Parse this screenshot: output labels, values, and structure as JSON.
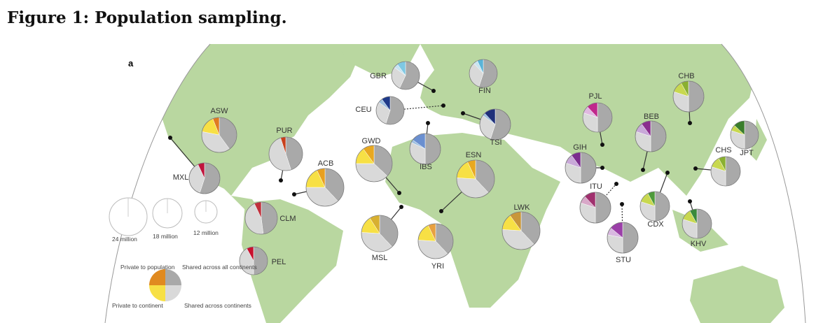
{
  "figure_title": "Figure 1: Population sampling.",
  "panel_label": "a",
  "colors": {
    "land": "#b9d7a0",
    "shared_all": "#a9a9a9",
    "shared_continents": "#d9d9d9",
    "private_continent": "#f7e045",
    "private_population": "#e08a20"
  },
  "legend": {
    "sizes": [
      {
        "label": "24 million"
      },
      {
        "label": "18 million"
      },
      {
        "label": "12 million"
      }
    ],
    "private_population": "Private to population",
    "private_continent": "Private to continent",
    "shared_all": "Shared across all continents",
    "shared_continents": "Shared across continents"
  },
  "populations": [
    {
      "code": "ASW",
      "shares": [
        0.4,
        0.38,
        0.16,
        0.06
      ],
      "colors": [
        "#a9a9a9",
        "#d9d9d9",
        "#f7e045",
        "#e07b20"
      ]
    },
    {
      "code": "MXL",
      "shares": [
        0.55,
        0.38,
        0.0,
        0.07
      ],
      "colors": [
        "#a9a9a9",
        "#d9d9d9",
        "#f7e045",
        "#c0143c"
      ]
    },
    {
      "code": "PUR",
      "shares": [
        0.45,
        0.5,
        0.0,
        0.05
      ],
      "colors": [
        "#a9a9a9",
        "#d9d9d9",
        "#f7e045",
        "#c8401c"
      ]
    },
    {
      "code": "ACB",
      "shares": [
        0.38,
        0.37,
        0.18,
        0.07
      ],
      "colors": [
        "#a9a9a9",
        "#d9d9d9",
        "#f7e045",
        "#e8a020"
      ]
    },
    {
      "code": "CLM",
      "shares": [
        0.48,
        0.45,
        0.0,
        0.07
      ],
      "colors": [
        "#a9a9a9",
        "#d9d9d9",
        "#f7e045",
        "#c0303c"
      ]
    },
    {
      "code": "PEL",
      "shares": [
        0.5,
        0.42,
        0.0,
        0.08
      ],
      "colors": [
        "#a9a9a9",
        "#d9d9d9",
        "#f7e045",
        "#c8102e"
      ]
    },
    {
      "code": "GBR",
      "shares": [
        0.57,
        0.28,
        0.05,
        0.1
      ],
      "colors": [
        "#a9a9a9",
        "#d9d9d9",
        "#c8e4f0",
        "#7ec8e3"
      ]
    },
    {
      "code": "FIN",
      "shares": [
        0.55,
        0.33,
        0.05,
        0.07
      ],
      "colors": [
        "#a9a9a9",
        "#d9d9d9",
        "#c8e4f0",
        "#5ab4d8"
      ]
    },
    {
      "code": "CEU",
      "shares": [
        0.55,
        0.3,
        0.05,
        0.1
      ],
      "colors": [
        "#a9a9a9",
        "#d9d9d9",
        "#9fc0e0",
        "#1f3a8a"
      ]
    },
    {
      "code": "TSI",
      "shares": [
        0.55,
        0.3,
        0.03,
        0.12
      ],
      "colors": [
        "#a9a9a9",
        "#d9d9d9",
        "#9fc0e0",
        "#1f2f7a"
      ]
    },
    {
      "code": "IBS",
      "shares": [
        0.5,
        0.32,
        0.03,
        0.15
      ],
      "colors": [
        "#a9a9a9",
        "#d9d9d9",
        "#9fc0e0",
        "#6a8fd0"
      ]
    },
    {
      "code": "GWD",
      "shares": [
        0.37,
        0.38,
        0.15,
        0.1
      ],
      "colors": [
        "#a9a9a9",
        "#d9d9d9",
        "#f7e045",
        "#e8a820"
      ]
    },
    {
      "code": "ESN",
      "shares": [
        0.38,
        0.38,
        0.17,
        0.07
      ],
      "colors": [
        "#a9a9a9",
        "#d9d9d9",
        "#f7e045",
        "#e8a820"
      ]
    },
    {
      "code": "MSL",
      "shares": [
        0.38,
        0.38,
        0.15,
        0.09
      ],
      "colors": [
        "#a9a9a9",
        "#d9d9d9",
        "#f7e045",
        "#d8b030"
      ]
    },
    {
      "code": "YRI",
      "shares": [
        0.38,
        0.38,
        0.17,
        0.07
      ],
      "colors": [
        "#a9a9a9",
        "#d9d9d9",
        "#f7e045",
        "#e8a040"
      ]
    },
    {
      "code": "LWK",
      "shares": [
        0.38,
        0.38,
        0.14,
        0.1
      ],
      "colors": [
        "#a9a9a9",
        "#d9d9d9",
        "#f7e045",
        "#c8963a"
      ]
    },
    {
      "code": "PJL",
      "shares": [
        0.5,
        0.3,
        0.08,
        0.12
      ],
      "colors": [
        "#a9a9a9",
        "#d9d9d9",
        "#e0b8e0",
        "#c0288c"
      ]
    },
    {
      "code": "GIH",
      "shares": [
        0.5,
        0.3,
        0.1,
        0.1
      ],
      "colors": [
        "#a9a9a9",
        "#d9d9d9",
        "#c8a8d8",
        "#7b2d8e"
      ]
    },
    {
      "code": "BEB",
      "shares": [
        0.5,
        0.3,
        0.1,
        0.1
      ],
      "colors": [
        "#a9a9a9",
        "#d9d9d9",
        "#c8a8d8",
        "#8a2d8e"
      ]
    },
    {
      "code": "ITU",
      "shares": [
        0.5,
        0.3,
        0.08,
        0.12
      ],
      "colors": [
        "#a9a9a9",
        "#d9d9d9",
        "#d8a8c8",
        "#a0306e"
      ]
    },
    {
      "code": "STU",
      "shares": [
        0.5,
        0.28,
        0.08,
        0.14
      ],
      "colors": [
        "#a9a9a9",
        "#d9d9d9",
        "#d8b8e0",
        "#9b3fa8"
      ]
    },
    {
      "code": "CHB",
      "shares": [
        0.5,
        0.3,
        0.12,
        0.08
      ],
      "colors": [
        "#a9a9a9",
        "#d9d9d9",
        "#c8d850",
        "#8ab030"
      ]
    },
    {
      "code": "CHS",
      "shares": [
        0.5,
        0.3,
        0.12,
        0.08
      ],
      "colors": [
        "#a9a9a9",
        "#d9d9d9",
        "#c8d850",
        "#8ab030"
      ]
    },
    {
      "code": "JPT",
      "shares": [
        0.5,
        0.3,
        0.07,
        0.13
      ],
      "colors": [
        "#a9a9a9",
        "#d9d9d9",
        "#c8d850",
        "#3a7d2c"
      ]
    },
    {
      "code": "CDX",
      "shares": [
        0.5,
        0.3,
        0.12,
        0.08
      ],
      "colors": [
        "#a9a9a9",
        "#d9d9d9",
        "#c8d850",
        "#4e9a3a"
      ]
    },
    {
      "code": "KHV",
      "shares": [
        0.5,
        0.3,
        0.12,
        0.08
      ],
      "colors": [
        "#a9a9a9",
        "#d9d9d9",
        "#c8d850",
        "#3a8a3a"
      ]
    }
  ]
}
